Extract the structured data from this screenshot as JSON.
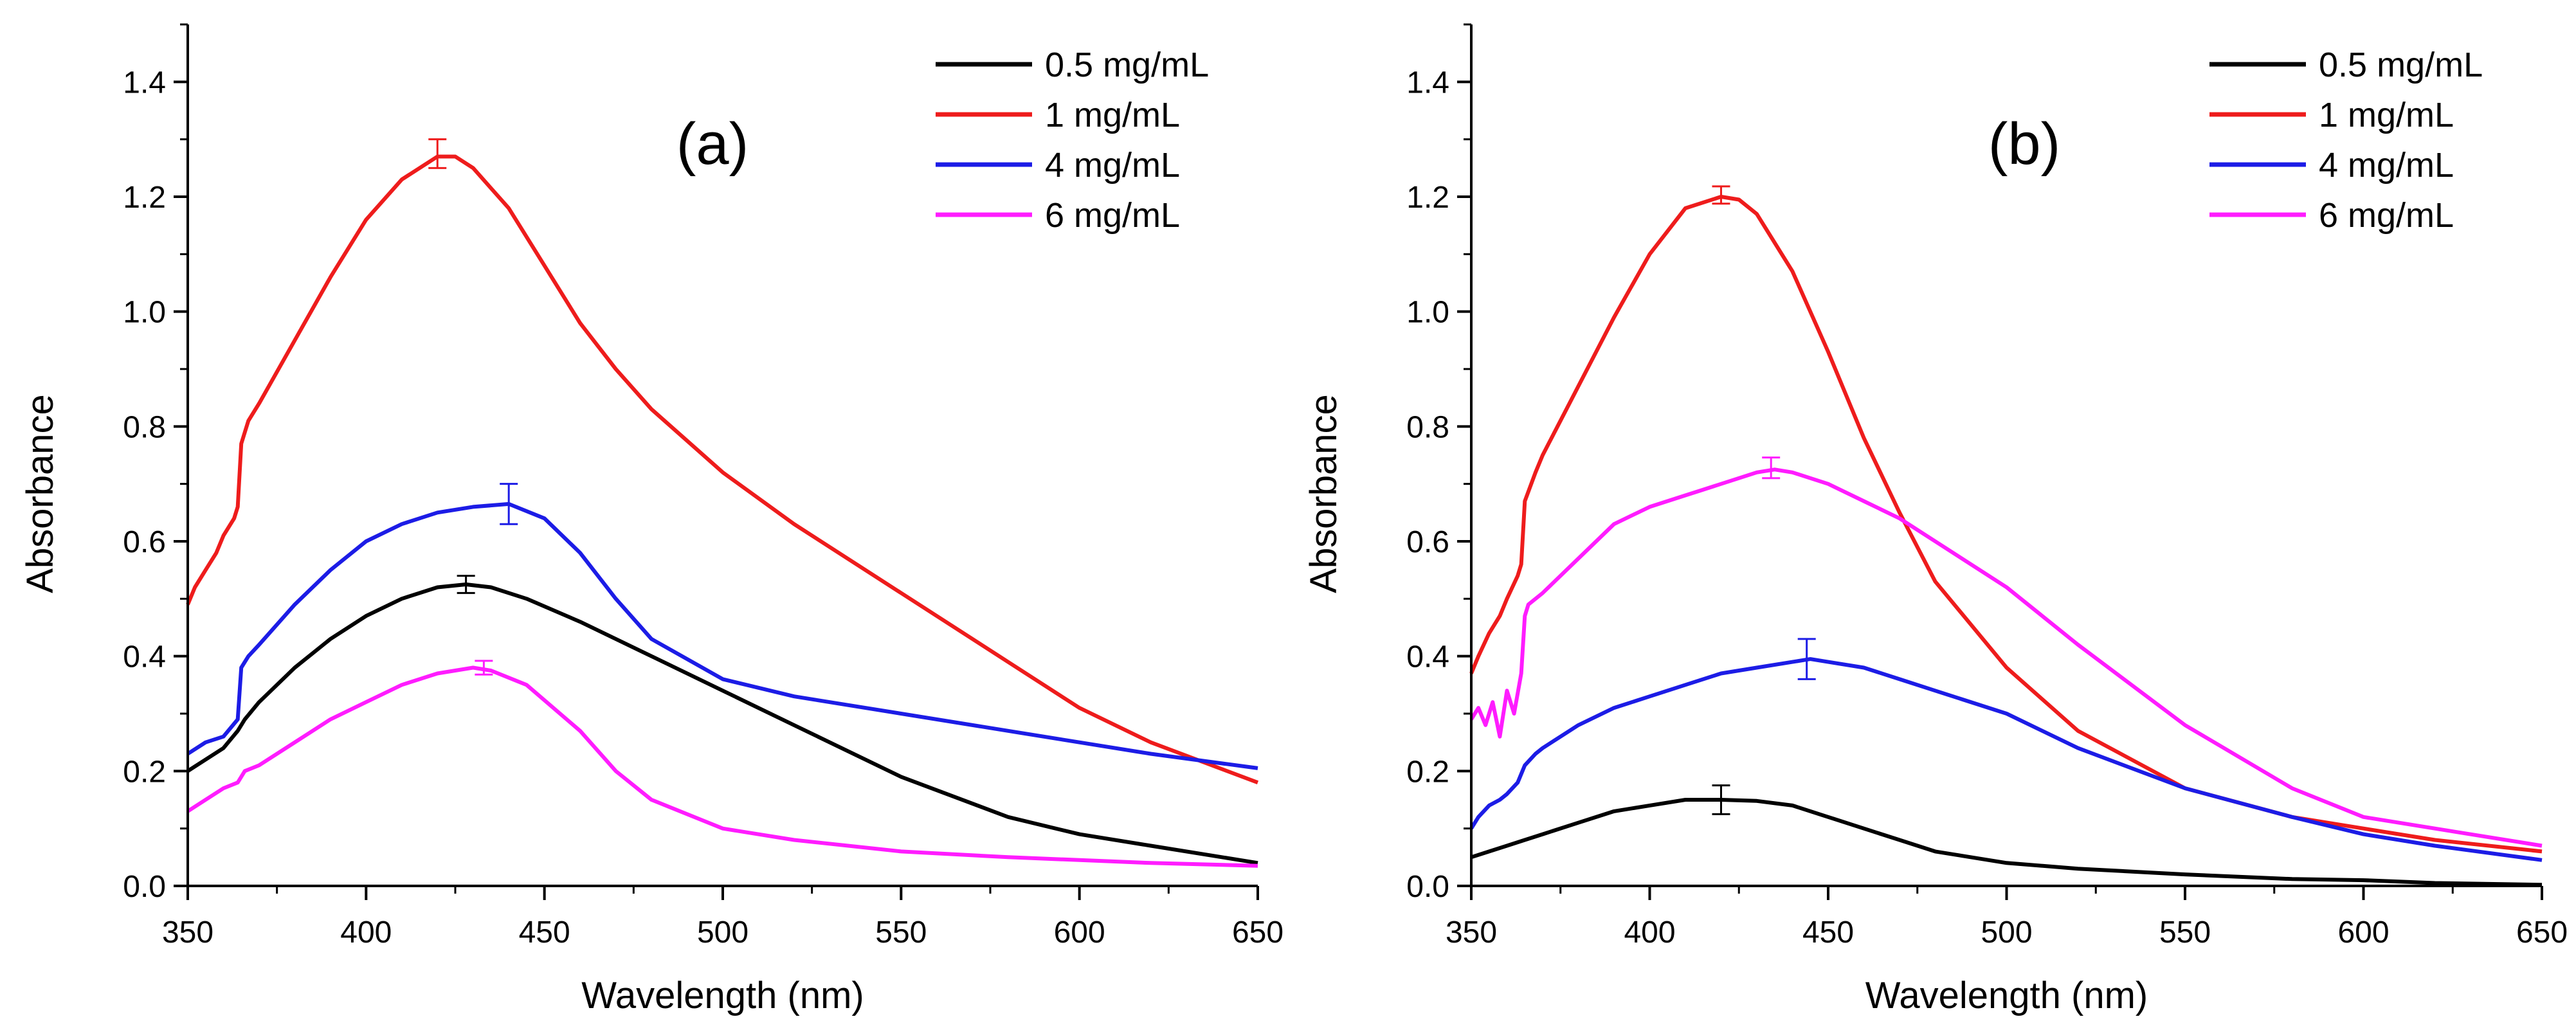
{
  "chart_data": [
    {
      "type": "line",
      "panel_label": "(a)",
      "xlabel": "Wavelength (nm)",
      "ylabel": "Absorbance",
      "xlim": [
        350,
        650
      ],
      "ylim": [
        0.0,
        1.5
      ],
      "xticks": [
        "350",
        "400",
        "450",
        "500",
        "550",
        "600",
        "650"
      ],
      "yticks": [
        "0.0",
        "0.2",
        "0.4",
        "0.6",
        "0.8",
        "1.0",
        "1.2",
        "1.4"
      ],
      "legend_position": "top-right",
      "series": [
        {
          "name": "0.5 mg/mL",
          "color": "#000000",
          "x": [
            350,
            355,
            360,
            364,
            366,
            370,
            380,
            390,
            400,
            410,
            420,
            428,
            435,
            445,
            460,
            480,
            500,
            520,
            550,
            580,
            600,
            620,
            650
          ],
          "y": [
            0.2,
            0.22,
            0.24,
            0.27,
            0.29,
            0.32,
            0.38,
            0.43,
            0.47,
            0.5,
            0.52,
            0.525,
            0.52,
            0.5,
            0.46,
            0.4,
            0.34,
            0.28,
            0.19,
            0.12,
            0.09,
            0.07,
            0.04
          ],
          "error_bar": {
            "x": 428,
            "y": 0.525,
            "err": 0.015
          }
        },
        {
          "name": "1 mg/mL",
          "color": "#ee1c1c",
          "x": [
            350,
            352,
            355,
            358,
            360,
            363,
            364,
            365,
            367,
            370,
            380,
            390,
            400,
            410,
            420,
            425,
            430,
            440,
            450,
            460,
            470,
            480,
            500,
            520,
            550,
            580,
            600,
            620,
            650
          ],
          "y": [
            0.49,
            0.52,
            0.55,
            0.58,
            0.61,
            0.64,
            0.66,
            0.77,
            0.81,
            0.84,
            0.95,
            1.06,
            1.16,
            1.23,
            1.27,
            1.27,
            1.25,
            1.18,
            1.08,
            0.98,
            0.9,
            0.83,
            0.72,
            0.63,
            0.51,
            0.39,
            0.31,
            0.25,
            0.18
          ],
          "error_bar": {
            "x": 420,
            "y": 1.275,
            "err": 0.025
          }
        },
        {
          "name": "4 mg/mL",
          "color": "#1c1ce6",
          "x": [
            350,
            355,
            360,
            364,
            365,
            367,
            370,
            380,
            390,
            400,
            410,
            420,
            430,
            440,
            450,
            460,
            470,
            480,
            500,
            520,
            550,
            580,
            600,
            620,
            650
          ],
          "y": [
            0.23,
            0.25,
            0.26,
            0.29,
            0.38,
            0.4,
            0.42,
            0.49,
            0.55,
            0.6,
            0.63,
            0.65,
            0.66,
            0.665,
            0.64,
            0.58,
            0.5,
            0.43,
            0.36,
            0.33,
            0.3,
            0.27,
            0.25,
            0.23,
            0.205
          ],
          "error_bar": {
            "x": 440,
            "y": 0.665,
            "err": 0.035
          }
        },
        {
          "name": "6 mg/mL",
          "color": "#ff1cff",
          "x": [
            350,
            355,
            360,
            364,
            366,
            370,
            380,
            390,
            400,
            410,
            420,
            430,
            435,
            445,
            460,
            470,
            480,
            500,
            520,
            550,
            580,
            600,
            620,
            650
          ],
          "y": [
            0.13,
            0.15,
            0.17,
            0.18,
            0.2,
            0.21,
            0.25,
            0.29,
            0.32,
            0.35,
            0.37,
            0.38,
            0.375,
            0.35,
            0.27,
            0.2,
            0.15,
            0.1,
            0.08,
            0.06,
            0.05,
            0.045,
            0.04,
            0.035
          ],
          "error_bar": {
            "x": 433,
            "y": 0.38,
            "err": 0.012
          }
        }
      ]
    },
    {
      "type": "line",
      "panel_label": "(b)",
      "xlabel": "Wavelength (nm)",
      "ylabel": "Absorbance",
      "xlim": [
        350,
        650
      ],
      "ylim": [
        0.0,
        1.5
      ],
      "xticks": [
        "350",
        "400",
        "450",
        "500",
        "550",
        "600",
        "650"
      ],
      "yticks": [
        "0.0",
        "0.2",
        "0.4",
        "0.6",
        "0.8",
        "1.0",
        "1.2",
        "1.4"
      ],
      "legend_position": "top-right",
      "series": [
        {
          "name": "0.5 mg/mL",
          "color": "#000000",
          "x": [
            350,
            355,
            360,
            365,
            370,
            380,
            390,
            400,
            410,
            420,
            430,
            440,
            450,
            460,
            470,
            480,
            500,
            520,
            550,
            580,
            600,
            620,
            650
          ],
          "y": [
            0.05,
            0.06,
            0.07,
            0.08,
            0.09,
            0.11,
            0.13,
            0.14,
            0.15,
            0.15,
            0.148,
            0.14,
            0.12,
            0.1,
            0.08,
            0.06,
            0.04,
            0.03,
            0.02,
            0.012,
            0.01,
            0.005,
            0.002
          ],
          "error_bar": {
            "x": 420,
            "y": 0.15,
            "err": 0.025
          }
        },
        {
          "name": "1 mg/mL",
          "color": "#ee1c1c",
          "x": [
            350,
            352,
            355,
            358,
            360,
            363,
            364,
            365,
            368,
            370,
            380,
            390,
            400,
            410,
            420,
            425,
            430,
            440,
            450,
            460,
            470,
            480,
            500,
            520,
            550,
            580,
            600,
            620,
            650
          ],
          "y": [
            0.37,
            0.4,
            0.44,
            0.47,
            0.5,
            0.54,
            0.56,
            0.67,
            0.72,
            0.75,
            0.87,
            0.99,
            1.1,
            1.18,
            1.2,
            1.195,
            1.17,
            1.07,
            0.93,
            0.78,
            0.65,
            0.53,
            0.38,
            0.27,
            0.17,
            0.12,
            0.1,
            0.08,
            0.06
          ],
          "error_bar": {
            "x": 420,
            "y": 1.203,
            "err": 0.015
          }
        },
        {
          "name": "4 mg/mL",
          "color": "#1c1ce6",
          "x": [
            350,
            352,
            355,
            358,
            360,
            363,
            365,
            368,
            370,
            380,
            390,
            400,
            410,
            420,
            430,
            440,
            445,
            450,
            460,
            470,
            480,
            500,
            520,
            550,
            580,
            600,
            620,
            650
          ],
          "y": [
            0.1,
            0.12,
            0.14,
            0.15,
            0.16,
            0.18,
            0.21,
            0.23,
            0.24,
            0.28,
            0.31,
            0.33,
            0.35,
            0.37,
            0.38,
            0.39,
            0.395,
            0.39,
            0.38,
            0.36,
            0.34,
            0.3,
            0.24,
            0.17,
            0.12,
            0.09,
            0.07,
            0.045
          ],
          "error_bar": {
            "x": 444,
            "y": 0.395,
            "err": 0.035
          }
        },
        {
          "name": "6 mg/mL",
          "color": "#ff1cff",
          "x": [
            350,
            352,
            354,
            356,
            358,
            360,
            362,
            364,
            365,
            366,
            370,
            380,
            390,
            400,
            410,
            415,
            420,
            430,
            435,
            440,
            450,
            460,
            470,
            480,
            500,
            520,
            550,
            580,
            600,
            620,
            650
          ],
          "y": [
            0.29,
            0.31,
            0.28,
            0.32,
            0.26,
            0.34,
            0.3,
            0.37,
            0.47,
            0.49,
            0.51,
            0.57,
            0.63,
            0.66,
            0.68,
            0.69,
            0.7,
            0.72,
            0.725,
            0.72,
            0.7,
            0.67,
            0.64,
            0.6,
            0.52,
            0.42,
            0.28,
            0.17,
            0.12,
            0.1,
            0.07
          ],
          "error_bar": {
            "x": 434,
            "y": 0.728,
            "err": 0.018
          }
        }
      ]
    }
  ]
}
